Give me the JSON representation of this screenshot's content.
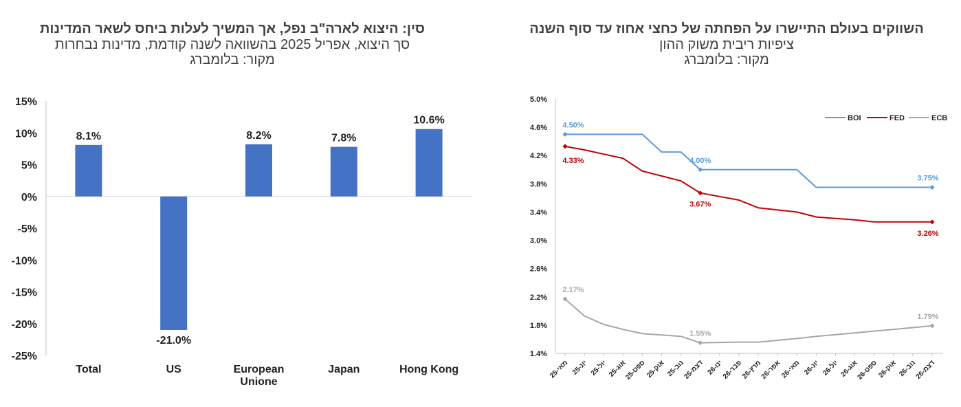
{
  "left": {
    "title": "סין: היצוא לארה\"ב נפל, אך המשיך לעלות ביחס לשאר המדינות",
    "subtitle": "סך היצוא, אפריל 2025 בהשוואה לשנה קודמת, מדינות נבחרות",
    "source": "מקור: בלומברג"
  },
  "right": {
    "title": "השווקים בעולם התיישרו על הפחתה של כחצי אחוז עד סוף השנה",
    "subtitle": "ציפיות ריבית משוק ההון",
    "source": "מקור: בלומברג"
  },
  "chart_data": [
    {
      "type": "bar",
      "categories": [
        "Total",
        "US",
        "European Unione",
        "Japan",
        "Hong Kong"
      ],
      "values": [
        8.1,
        -21.0,
        8.2,
        7.8,
        10.6
      ],
      "data_labels": [
        "8.1%",
        "-21.0%",
        "8.2%",
        "7.8%",
        "10.6%"
      ],
      "ylim": [
        -25,
        15
      ],
      "yticks": [
        "-25%",
        "-20%",
        "-15%",
        "-10%",
        "-5%",
        "0%",
        "5%",
        "10%",
        "15%"
      ],
      "color": "#4472C4",
      "grid": false
    },
    {
      "type": "line",
      "x": [
        "מאי-25",
        "יונ-25",
        "יול-25",
        "אוג-25",
        "ספט-25",
        "אוק-25",
        "נוב-25",
        "דצמ-25",
        "ינו-26",
        "פבר-26",
        "מרץ-26",
        "אפר-26",
        "מאי-26",
        "יונ-26",
        "יול-26",
        "אוג-26",
        "ספט-26",
        "אוק-26",
        "נוב-26",
        "דצמ-26"
      ],
      "ylim": [
        1.4,
        5.0
      ],
      "yticks": [
        "1.4%",
        "1.8%",
        "2.2%",
        "2.6%",
        "3.0%",
        "3.4%",
        "3.8%",
        "4.2%",
        "4.6%",
        "5.0%"
      ],
      "legend_position": "top-right",
      "grid": false,
      "series": [
        {
          "name": "BOI",
          "color": "#5B9BD5",
          "values": [
            4.5,
            4.5,
            4.5,
            4.5,
            4.5,
            4.25,
            4.25,
            4.0,
            4.0,
            4.0,
            4.0,
            4.0,
            4.0,
            3.75,
            3.75,
            3.75,
            3.75,
            3.75,
            3.75,
            3.75
          ],
          "point_labels": [
            {
              "index": 0,
              "text": "4.50%"
            },
            {
              "index": 7,
              "text": "4.00%"
            },
            {
              "index": 19,
              "text": "3.75%"
            }
          ]
        },
        {
          "name": "FED",
          "color": "#C00000",
          "values": [
            4.33,
            4.28,
            4.22,
            4.16,
            3.98,
            3.91,
            3.84,
            3.67,
            3.62,
            3.57,
            3.46,
            3.43,
            3.4,
            3.33,
            3.31,
            3.29,
            3.26,
            3.26,
            3.26,
            3.26
          ],
          "point_labels": [
            {
              "index": 0,
              "text": "4.33%"
            },
            {
              "index": 7,
              "text": "3.67%"
            },
            {
              "index": 19,
              "text": "3.26%"
            }
          ]
        },
        {
          "name": "ECB",
          "color": "#A6A6A6",
          "values": [
            2.17,
            1.93,
            1.81,
            1.74,
            1.68,
            1.66,
            1.64,
            1.55,
            1.555,
            1.56,
            1.56,
            1.585,
            1.61,
            1.64,
            1.665,
            1.69,
            1.715,
            1.74,
            1.765,
            1.79
          ],
          "point_labels": [
            {
              "index": 0,
              "text": "2.17%"
            },
            {
              "index": 7,
              "text": "1.55%"
            },
            {
              "index": 19,
              "text": "1.79%"
            }
          ]
        }
      ]
    }
  ]
}
